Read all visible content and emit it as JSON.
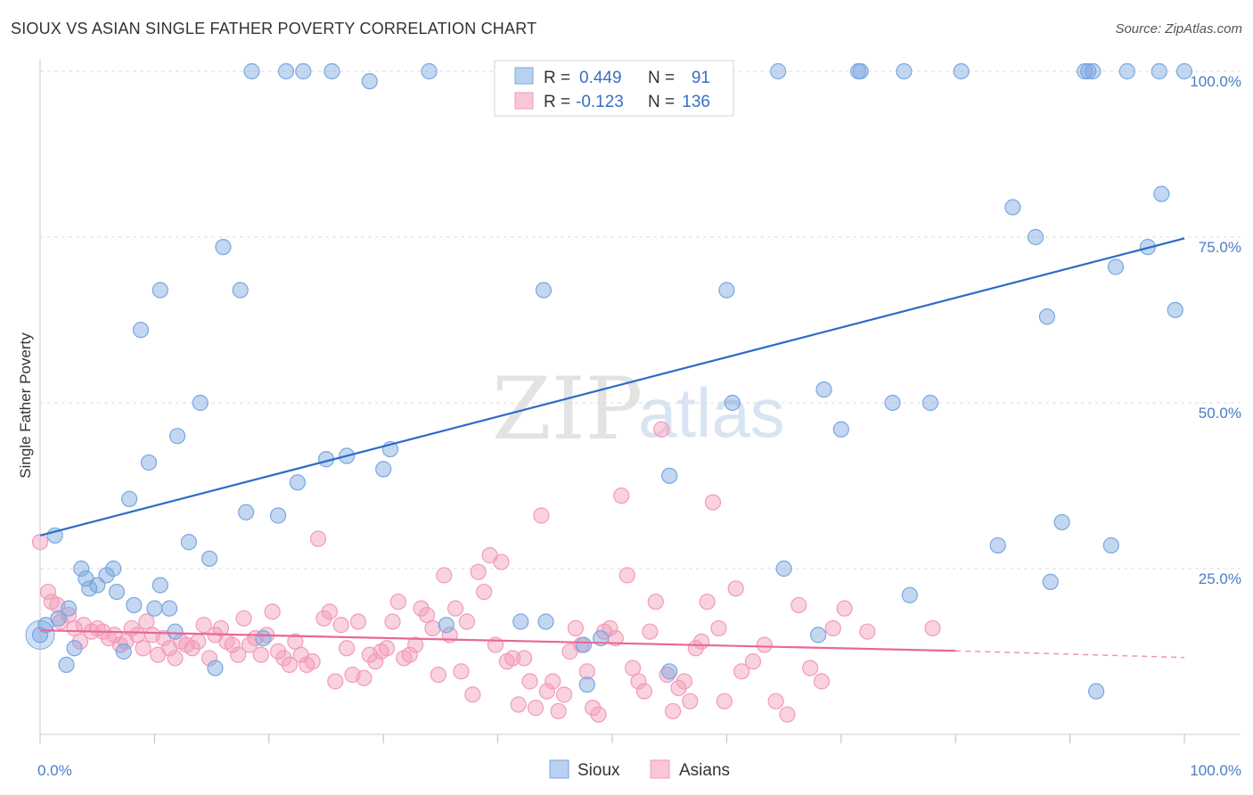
{
  "header": {
    "title": "SIOUX VS ASIAN SINGLE FATHER POVERTY CORRELATION CHART",
    "source": "Source: ZipAtlas.com"
  },
  "legend_top": {
    "rows": [
      {
        "r_label": "R =",
        "r_value": "0.449",
        "n_label": "N =",
        "n_value": "91"
      },
      {
        "r_label": "R =",
        "r_value": "-0.123",
        "n_label": "N =",
        "n_value": "136"
      }
    ]
  },
  "legend_bottom": {
    "sioux": "Sioux",
    "asians": "Asians"
  },
  "watermark": {
    "zip": "ZIP",
    "atlas": "atlas"
  },
  "chart_data": {
    "type": "scatter",
    "ylabel": "Single Father Poverty",
    "xlim": [
      0,
      100
    ],
    "ylim": [
      0,
      100
    ],
    "x_tick_labels": [
      "0.0%",
      "100.0%"
    ],
    "y_tick_labels": [
      "25.0%",
      "50.0%",
      "75.0%",
      "100.0%"
    ],
    "y_ticks": [
      25,
      50,
      75,
      100
    ],
    "grid": true,
    "colors": {
      "sioux": "#7aa6e0",
      "sioux_line": "#2a6cc9",
      "asians": "#f29bb8",
      "asians_line": "#e8679a"
    },
    "series": [
      {
        "name": "Sioux",
        "r": 0.449,
        "n": 91,
        "trend": {
          "x0": 0,
          "y0": 30.0,
          "x1": 100,
          "y1": 74.8
        },
        "points": [
          [
            0.0,
            15.0
          ],
          [
            0.5,
            16.5
          ],
          [
            1.3,
            30.0
          ],
          [
            1.6,
            17.5
          ],
          [
            2.3,
            10.5
          ],
          [
            2.5,
            19.0
          ],
          [
            3.0,
            13.0
          ],
          [
            3.6,
            25.0
          ],
          [
            4.0,
            23.5
          ],
          [
            4.3,
            22.0
          ],
          [
            5.0,
            22.5
          ],
          [
            5.8,
            24.0
          ],
          [
            6.4,
            25.0
          ],
          [
            6.7,
            21.5
          ],
          [
            7.3,
            12.5
          ],
          [
            7.8,
            35.5
          ],
          [
            8.2,
            19.5
          ],
          [
            8.8,
            61.0
          ],
          [
            9.5,
            41.0
          ],
          [
            10.0,
            19.0
          ],
          [
            10.5,
            22.5
          ],
          [
            10.5,
            67.0
          ],
          [
            11.3,
            19.0
          ],
          [
            11.8,
            15.5
          ],
          [
            12.0,
            45.0
          ],
          [
            13.0,
            29.0
          ],
          [
            14.0,
            50.0
          ],
          [
            14.8,
            26.5
          ],
          [
            15.3,
            10.0
          ],
          [
            16.0,
            73.5
          ],
          [
            17.5,
            67.0
          ],
          [
            18.0,
            33.5
          ],
          [
            18.5,
            100.0
          ],
          [
            19.5,
            14.5
          ],
          [
            20.8,
            33.0
          ],
          [
            21.5,
            100.0
          ],
          [
            22.5,
            38.0
          ],
          [
            23.0,
            100.0
          ],
          [
            25.0,
            41.5
          ],
          [
            25.5,
            100.0
          ],
          [
            26.8,
            42.0
          ],
          [
            28.8,
            98.5
          ],
          [
            30.0,
            40.0
          ],
          [
            30.6,
            43.0
          ],
          [
            34.0,
            100.0
          ],
          [
            35.5,
            16.5
          ],
          [
            42.0,
            17.0
          ],
          [
            42.5,
            100.0
          ],
          [
            44.0,
            67.0
          ],
          [
            44.2,
            17.0
          ],
          [
            47.5,
            13.5
          ],
          [
            47.8,
            7.5
          ],
          [
            49.0,
            14.5
          ],
          [
            55.0,
            39.0
          ],
          [
            55.0,
            9.5
          ],
          [
            60.0,
            67.0
          ],
          [
            60.5,
            50.0
          ],
          [
            64.5,
            100.0
          ],
          [
            65.0,
            25.0
          ],
          [
            68.0,
            15.0
          ],
          [
            68.5,
            52.0
          ],
          [
            70.0,
            46.0
          ],
          [
            71.5,
            100.0
          ],
          [
            71.7,
            100.0
          ],
          [
            74.5,
            50.0
          ],
          [
            75.5,
            100.0
          ],
          [
            76.0,
            21.0
          ],
          [
            77.8,
            50.0
          ],
          [
            80.5,
            100.0
          ],
          [
            83.7,
            28.5
          ],
          [
            85.0,
            79.5
          ],
          [
            87.0,
            75.0
          ],
          [
            88.0,
            63.0
          ],
          [
            88.3,
            23.0
          ],
          [
            89.3,
            32.0
          ],
          [
            91.3,
            100.0
          ],
          [
            91.6,
            100.0
          ],
          [
            92.0,
            100.0
          ],
          [
            92.3,
            6.5
          ],
          [
            93.6,
            28.5
          ],
          [
            94.0,
            70.5
          ],
          [
            95.0,
            100.0
          ],
          [
            96.8,
            73.5
          ],
          [
            97.8,
            100.0
          ],
          [
            98.0,
            81.5
          ],
          [
            99.2,
            64.0
          ],
          [
            100.0,
            100.0
          ]
        ]
      },
      {
        "name": "Asians",
        "r": -0.123,
        "n": 136,
        "trend": {
          "x0": 0,
          "y0": 15.7,
          "x1": 80,
          "y1": 12.6,
          "dash_x1": 100,
          "dash_y1": 11.6
        },
        "points": [
          [
            0.0,
            29.0
          ],
          [
            0.7,
            21.5
          ],
          [
            1.0,
            20.0
          ],
          [
            1.5,
            19.5
          ],
          [
            1.8,
            17.0
          ],
          [
            2.5,
            18.0
          ],
          [
            3.0,
            16.0
          ],
          [
            3.5,
            14.0
          ],
          [
            3.8,
            16.5
          ],
          [
            4.5,
            15.5
          ],
          [
            5.0,
            16.0
          ],
          [
            5.5,
            15.5
          ],
          [
            6.0,
            14.5
          ],
          [
            6.5,
            15.0
          ],
          [
            7.0,
            13.5
          ],
          [
            7.5,
            14.0
          ],
          [
            8.0,
            16.0
          ],
          [
            8.5,
            15.0
          ],
          [
            9.0,
            13.0
          ],
          [
            9.3,
            17.0
          ],
          [
            9.8,
            15.0
          ],
          [
            10.3,
            12.0
          ],
          [
            10.8,
            14.5
          ],
          [
            11.3,
            13.0
          ],
          [
            11.8,
            11.5
          ],
          [
            12.3,
            14.0
          ],
          [
            12.8,
            13.5
          ],
          [
            13.3,
            13.0
          ],
          [
            13.8,
            14.0
          ],
          [
            14.3,
            16.5
          ],
          [
            14.8,
            11.5
          ],
          [
            15.3,
            15.0
          ],
          [
            15.8,
            16.0
          ],
          [
            16.3,
            14.0
          ],
          [
            16.8,
            13.5
          ],
          [
            17.3,
            12.0
          ],
          [
            17.8,
            17.5
          ],
          [
            18.3,
            13.5
          ],
          [
            18.8,
            14.5
          ],
          [
            19.3,
            12.0
          ],
          [
            19.8,
            15.0
          ],
          [
            20.3,
            18.5
          ],
          [
            20.8,
            12.5
          ],
          [
            21.3,
            11.5
          ],
          [
            21.8,
            10.5
          ],
          [
            22.3,
            14.0
          ],
          [
            22.8,
            12.0
          ],
          [
            23.3,
            10.5
          ],
          [
            23.8,
            11.0
          ],
          [
            24.3,
            29.5
          ],
          [
            24.8,
            17.5
          ],
          [
            25.3,
            18.5
          ],
          [
            25.8,
            8.0
          ],
          [
            26.3,
            16.5
          ],
          [
            26.8,
            13.0
          ],
          [
            27.3,
            9.0
          ],
          [
            27.8,
            17.0
          ],
          [
            28.3,
            8.5
          ],
          [
            28.8,
            12.0
          ],
          [
            29.3,
            11.0
          ],
          [
            29.8,
            12.5
          ],
          [
            30.3,
            13.0
          ],
          [
            30.8,
            17.0
          ],
          [
            31.3,
            20.0
          ],
          [
            31.8,
            11.5
          ],
          [
            32.3,
            12.0
          ],
          [
            32.8,
            13.5
          ],
          [
            33.3,
            19.0
          ],
          [
            33.8,
            18.0
          ],
          [
            34.3,
            16.0
          ],
          [
            34.8,
            9.0
          ],
          [
            35.3,
            24.0
          ],
          [
            35.8,
            15.0
          ],
          [
            36.3,
            19.0
          ],
          [
            36.8,
            9.5
          ],
          [
            37.3,
            17.0
          ],
          [
            37.8,
            6.0
          ],
          [
            38.3,
            24.5
          ],
          [
            38.8,
            21.5
          ],
          [
            39.3,
            27.0
          ],
          [
            39.8,
            13.5
          ],
          [
            40.3,
            26.0
          ],
          [
            40.8,
            11.0
          ],
          [
            41.3,
            11.5
          ],
          [
            41.8,
            4.5
          ],
          [
            42.3,
            11.5
          ],
          [
            42.8,
            8.0
          ],
          [
            43.3,
            4.0
          ],
          [
            43.8,
            33.0
          ],
          [
            44.3,
            6.5
          ],
          [
            44.8,
            8.0
          ],
          [
            45.3,
            3.5
          ],
          [
            45.8,
            6.0
          ],
          [
            46.3,
            12.5
          ],
          [
            46.8,
            16.0
          ],
          [
            47.3,
            13.5
          ],
          [
            47.8,
            9.5
          ],
          [
            48.3,
            4.0
          ],
          [
            48.8,
            3.0
          ],
          [
            49.3,
            15.5
          ],
          [
            49.8,
            16.0
          ],
          [
            50.3,
            14.5
          ],
          [
            50.8,
            36.0
          ],
          [
            51.3,
            24.0
          ],
          [
            51.8,
            10.0
          ],
          [
            52.3,
            8.0
          ],
          [
            52.8,
            6.5
          ],
          [
            53.3,
            15.5
          ],
          [
            53.8,
            20.0
          ],
          [
            54.3,
            46.0
          ],
          [
            54.8,
            9.0
          ],
          [
            55.3,
            3.5
          ],
          [
            55.8,
            7.0
          ],
          [
            56.3,
            8.0
          ],
          [
            56.8,
            5.0
          ],
          [
            57.3,
            13.0
          ],
          [
            57.8,
            14.0
          ],
          [
            58.3,
            20.0
          ],
          [
            58.8,
            35.0
          ],
          [
            59.3,
            16.0
          ],
          [
            59.8,
            5.0
          ],
          [
            60.8,
            22.0
          ],
          [
            61.3,
            9.5
          ],
          [
            62.3,
            11.0
          ],
          [
            63.3,
            13.5
          ],
          [
            64.3,
            5.0
          ],
          [
            65.3,
            3.0
          ],
          [
            66.3,
            19.5
          ],
          [
            67.3,
            10.0
          ],
          [
            68.3,
            8.0
          ],
          [
            69.3,
            16.0
          ],
          [
            70.3,
            19.0
          ],
          [
            72.3,
            15.5
          ],
          [
            78.0,
            16.0
          ]
        ]
      }
    ]
  }
}
